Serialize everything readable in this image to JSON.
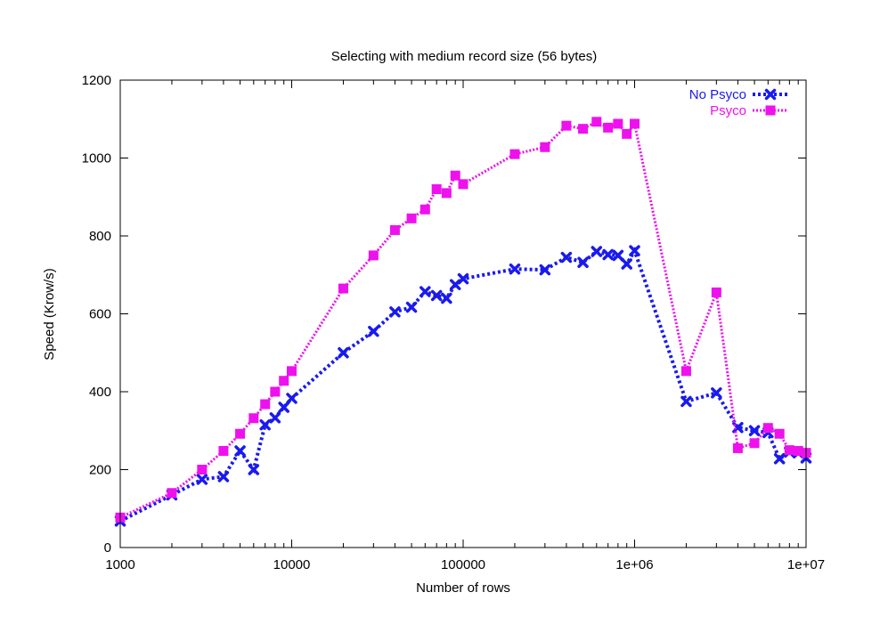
{
  "chart_data": {
    "type": "line",
    "title": "Selecting with medium record size (56 bytes)",
    "xlabel": "Number of rows",
    "ylabel": "Speed (Krow/s)",
    "xscale": "log",
    "xlim": [
      1000,
      10000000
    ],
    "ylim": [
      0,
      1200
    ],
    "xticks": [
      {
        "value": 1000,
        "label": "1000"
      },
      {
        "value": 10000,
        "label": "10000"
      },
      {
        "value": 100000,
        "label": "100000"
      },
      {
        "value": 1000000,
        "label": "1e+06"
      },
      {
        "value": 10000000,
        "label": "1e+07"
      }
    ],
    "yticks": [
      {
        "value": 0,
        "label": "0"
      },
      {
        "value": 200,
        "label": "200"
      },
      {
        "value": 400,
        "label": "400"
      },
      {
        "value": 600,
        "label": "600"
      },
      {
        "value": 800,
        "label": "800"
      },
      {
        "value": 1000,
        "label": "1000"
      },
      {
        "value": 1200,
        "label": "1200"
      }
    ],
    "legend_position": "top-right",
    "series": [
      {
        "name": "No Psyco",
        "color": "#1a1aee",
        "marker": "x",
        "points": [
          [
            1000,
            68
          ],
          [
            2000,
            135
          ],
          [
            3000,
            175
          ],
          [
            4000,
            182
          ],
          [
            5000,
            248
          ],
          [
            6000,
            200
          ],
          [
            7000,
            315
          ],
          [
            8000,
            333
          ],
          [
            9000,
            360
          ],
          [
            10000,
            383
          ],
          [
            20000,
            500
          ],
          [
            30000,
            555
          ],
          [
            40000,
            605
          ],
          [
            50000,
            617
          ],
          [
            60000,
            657
          ],
          [
            70000,
            647
          ],
          [
            80000,
            640
          ],
          [
            90000,
            675
          ],
          [
            100000,
            690
          ],
          [
            200000,
            715
          ],
          [
            300000,
            713
          ],
          [
            400000,
            745
          ],
          [
            500000,
            732
          ],
          [
            600000,
            760
          ],
          [
            700000,
            752
          ],
          [
            800000,
            750
          ],
          [
            900000,
            728
          ],
          [
            1000000,
            762
          ],
          [
            2000000,
            375
          ],
          [
            3000000,
            397
          ],
          [
            4000000,
            308
          ],
          [
            5000000,
            300
          ],
          [
            6000000,
            295
          ],
          [
            7000000,
            228
          ],
          [
            8000000,
            245
          ],
          [
            9000000,
            243
          ],
          [
            10000000,
            230
          ]
        ]
      },
      {
        "name": "Psyco",
        "color": "#ee11ee",
        "marker": "square",
        "points": [
          [
            1000,
            77
          ],
          [
            2000,
            140
          ],
          [
            3000,
            200
          ],
          [
            4000,
            248
          ],
          [
            5000,
            292
          ],
          [
            6000,
            332
          ],
          [
            7000,
            368
          ],
          [
            8000,
            400
          ],
          [
            9000,
            428
          ],
          [
            10000,
            453
          ],
          [
            20000,
            665
          ],
          [
            30000,
            750
          ],
          [
            40000,
            815
          ],
          [
            50000,
            845
          ],
          [
            60000,
            868
          ],
          [
            70000,
            920
          ],
          [
            80000,
            910
          ],
          [
            90000,
            955
          ],
          [
            100000,
            933
          ],
          [
            200000,
            1010
          ],
          [
            300000,
            1028
          ],
          [
            400000,
            1083
          ],
          [
            500000,
            1075
          ],
          [
            600000,
            1093
          ],
          [
            700000,
            1078
          ],
          [
            800000,
            1088
          ],
          [
            900000,
            1062
          ],
          [
            1000000,
            1088
          ],
          [
            2000000,
            453
          ],
          [
            3000000,
            655
          ],
          [
            4000000,
            255
          ],
          [
            5000000,
            268
          ],
          [
            6000000,
            307
          ],
          [
            7000000,
            292
          ],
          [
            8000000,
            250
          ],
          [
            9000000,
            248
          ],
          [
            10000000,
            243
          ]
        ]
      }
    ]
  }
}
